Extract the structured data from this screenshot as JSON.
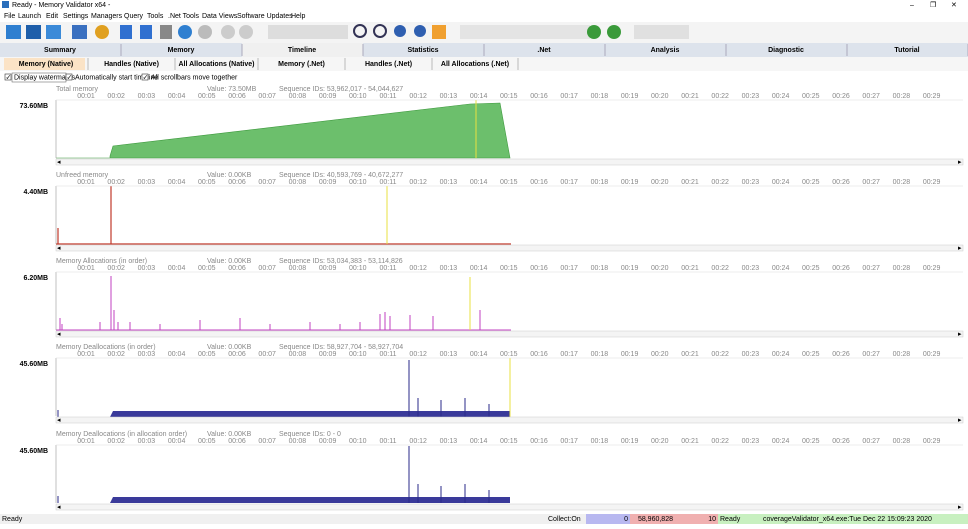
{
  "window": {
    "title": "Ready - Memory Validator x64 -"
  },
  "menu": [
    "File",
    "Launch",
    "Edit",
    "Settings",
    "Managers",
    "Query",
    "Tools",
    ".Net Tools",
    "Data Views",
    "Software Updates",
    "Help"
  ],
  "tabs": [
    "Summary",
    "Memory",
    "Timeline",
    "Statistics",
    ".Net",
    "Analysis",
    "Diagnostic",
    "Tutorial"
  ],
  "subtabs": [
    "Memory (Native)",
    "Handles (Native)",
    "All Allocations (Native)",
    "Memory (.Net)",
    "Handles (.Net)",
    "All Allocations (.Net)"
  ],
  "options": [
    "Display watermarks",
    "Automatically start timeline",
    "All scrollbars move together"
  ],
  "time_ticks": [
    "00:01",
    "00:02",
    "00:03",
    "00:04",
    "00:05",
    "00:06",
    "00:07",
    "00:08",
    "00:09",
    "00:10",
    "00:11",
    "00:12",
    "00:13",
    "00:14",
    "00:15",
    "00:16",
    "00:17",
    "00:18",
    "00:19",
    "00:20",
    "00:21",
    "00:22",
    "00:23",
    "00:24",
    "00:25",
    "00:26",
    "00:27",
    "00:28",
    "00:29"
  ],
  "panels": [
    {
      "title": "Total memory",
      "value": "Value: 73.50MB",
      "sequence": "Sequence IDs: 53,962,017 - 54,044,627",
      "scale": "73.60MB"
    },
    {
      "title": "Unfreed memory",
      "value": "Value: 0.00KB",
      "sequence": "Sequence IDs: 40,593,769 - 40,672,277",
      "scale": "4.40MB"
    },
    {
      "title": "Memory Allocations (in order)",
      "value": "Value: 0.00KB",
      "sequence": "Sequence IDs: 53,034,383 - 53,114,826",
      "scale": "6.20MB"
    },
    {
      "title": "Memory Deallocations (in order)",
      "value": "Value: 0.00KB",
      "sequence": "Sequence IDs: 58,927,704 - 58,927,704",
      "scale": "45.60MB"
    },
    {
      "title": "Memory Deallocations (in allocation order)",
      "value": "Value: 0.00KB",
      "sequence": "Sequence IDs: 0 - 0",
      "scale": "45.60MB"
    }
  ],
  "status": {
    "left": "Ready",
    "collect": "Collect:On",
    "blue": "0",
    "pink1": "58,960,828",
    "pink2": "10",
    "ready": "Ready",
    "exe": "coverageValidator_x64.exe:Tue Dec 22 15:09:23 2020"
  }
}
